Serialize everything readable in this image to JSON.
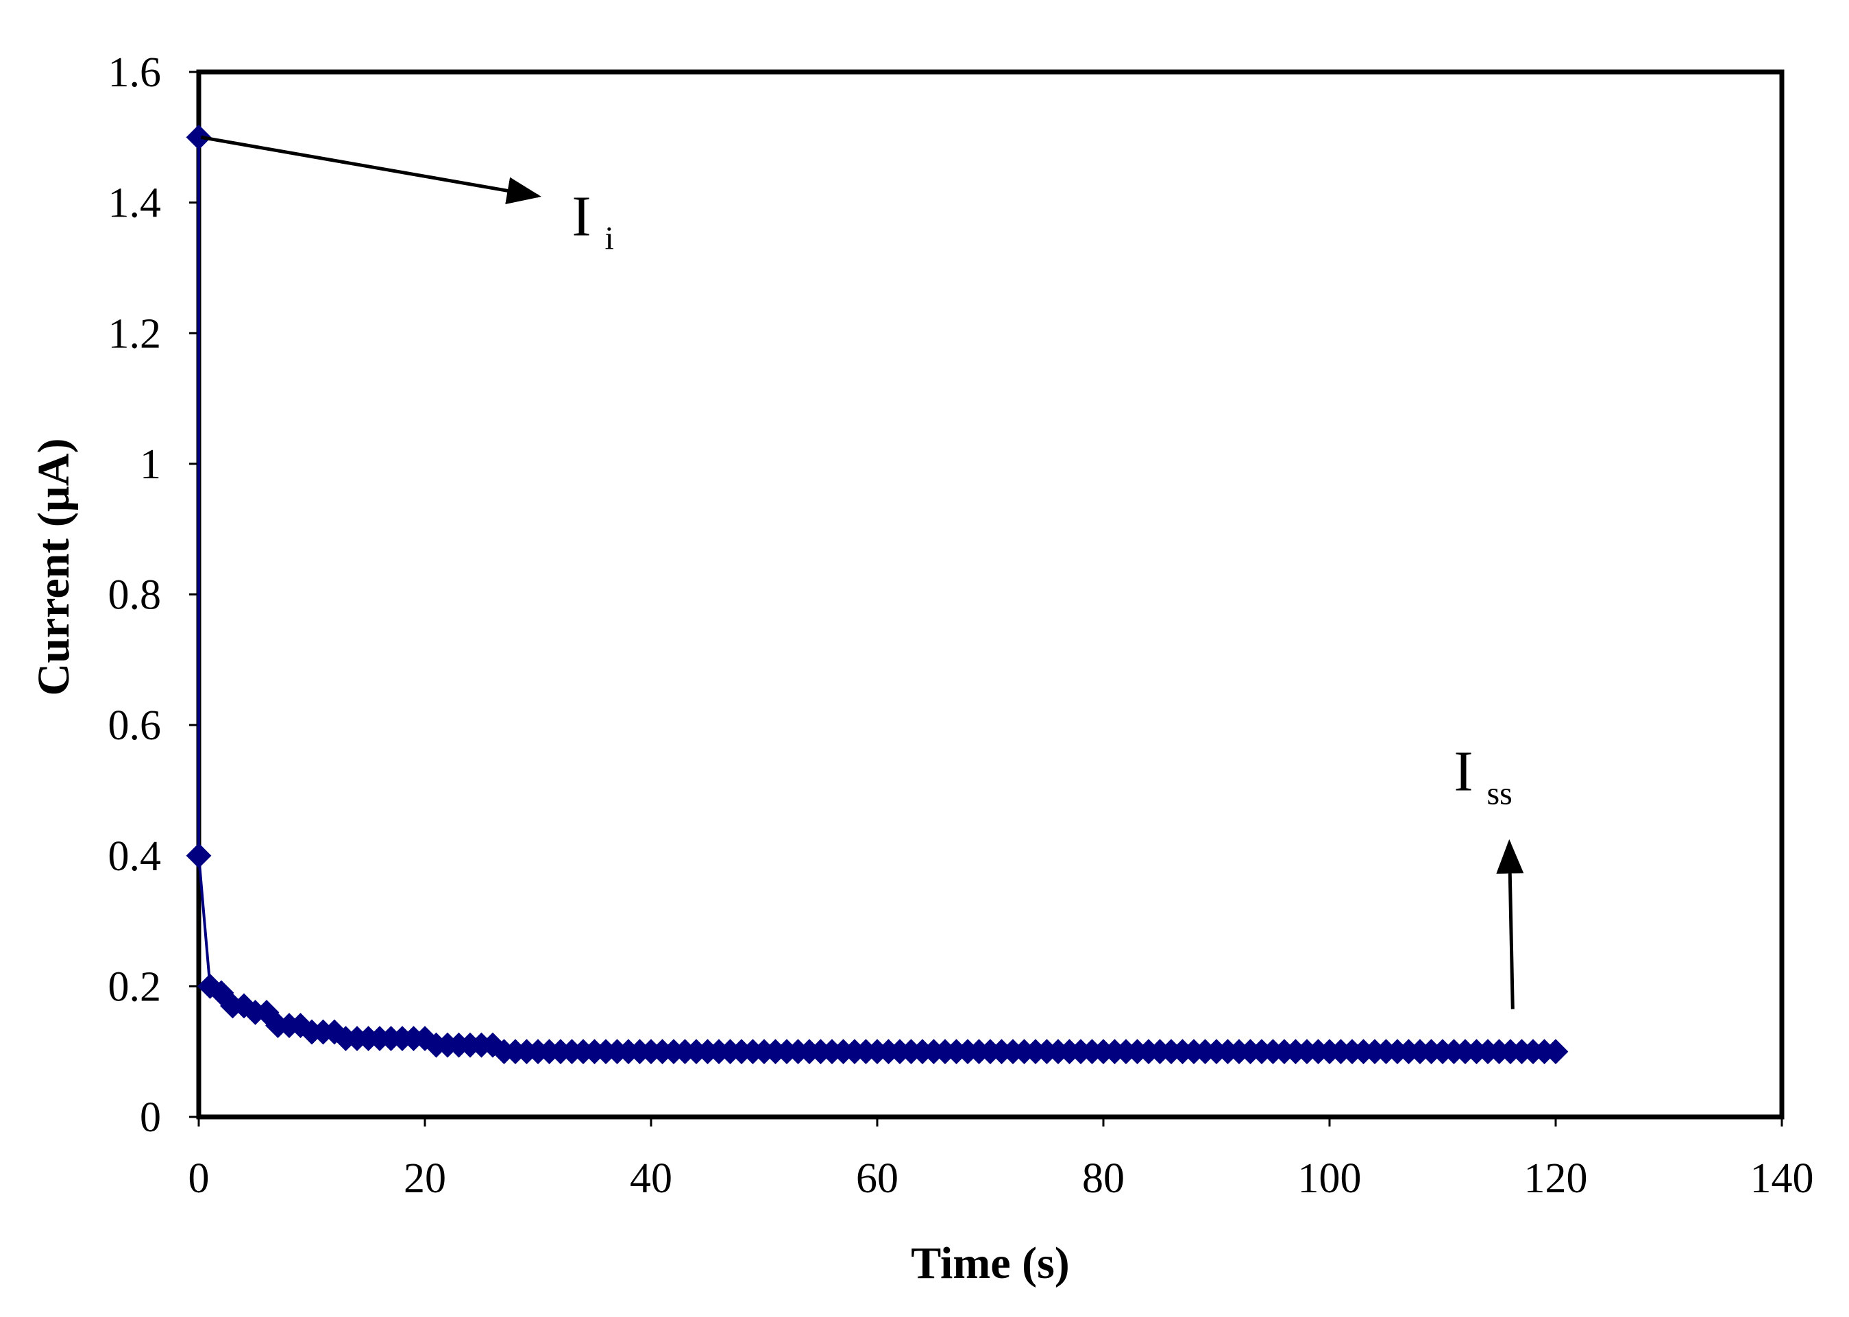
{
  "chart_data": {
    "type": "scatter",
    "title": "",
    "xlabel": "Time (s)",
    "ylabel": "Current (µA)",
    "xlim": [
      0,
      140
    ],
    "ylim": [
      0,
      1.6
    ],
    "x_ticks": [
      "0",
      "20",
      "40",
      "60",
      "80",
      "100",
      "120",
      "140"
    ],
    "y_ticks": [
      "0",
      "0.2",
      "0.4",
      "0.6",
      "0.8",
      "1",
      "1.2",
      "1.4",
      "1.6"
    ],
    "grid": false,
    "series": [
      {
        "name": "Current",
        "color": "#000080",
        "marker": "diamond",
        "points": [
          [
            0,
            1.5
          ],
          [
            0,
            0.4
          ],
          [
            1,
            0.2
          ],
          [
            2,
            0.19
          ],
          [
            3,
            0.17
          ],
          [
            4,
            0.17
          ],
          [
            5,
            0.16
          ],
          [
            6,
            0.16
          ],
          [
            7,
            0.14
          ],
          [
            8,
            0.14
          ],
          [
            9,
            0.14
          ],
          [
            10,
            0.13
          ],
          [
            11,
            0.13
          ],
          [
            12,
            0.13
          ],
          [
            13,
            0.12
          ],
          [
            14,
            0.12
          ],
          [
            15,
            0.12
          ],
          [
            16,
            0.12
          ],
          [
            17,
            0.12
          ],
          [
            18,
            0.12
          ],
          [
            19,
            0.12
          ],
          [
            20,
            0.12
          ],
          [
            21,
            0.11
          ],
          [
            22,
            0.11
          ],
          [
            23,
            0.11
          ],
          [
            24,
            0.11
          ],
          [
            25,
            0.11
          ],
          [
            26,
            0.11
          ],
          [
            27,
            0.1
          ],
          [
            28,
            0.1
          ],
          [
            29,
            0.1
          ],
          [
            30,
            0.1
          ],
          [
            31,
            0.1
          ],
          [
            32,
            0.1
          ],
          [
            33,
            0.1
          ],
          [
            34,
            0.1
          ],
          [
            35,
            0.1
          ],
          [
            36,
            0.1
          ],
          [
            37,
            0.1
          ],
          [
            38,
            0.1
          ],
          [
            39,
            0.1
          ],
          [
            40,
            0.1
          ],
          [
            41,
            0.1
          ],
          [
            42,
            0.1
          ],
          [
            43,
            0.1
          ],
          [
            44,
            0.1
          ],
          [
            45,
            0.1
          ],
          [
            46,
            0.1
          ],
          [
            47,
            0.1
          ],
          [
            48,
            0.1
          ],
          [
            49,
            0.1
          ],
          [
            50,
            0.1
          ],
          [
            51,
            0.1
          ],
          [
            52,
            0.1
          ],
          [
            53,
            0.1
          ],
          [
            54,
            0.1
          ],
          [
            55,
            0.1
          ],
          [
            56,
            0.1
          ],
          [
            57,
            0.1
          ],
          [
            58,
            0.1
          ],
          [
            59,
            0.1
          ],
          [
            60,
            0.1
          ],
          [
            61,
            0.1
          ],
          [
            62,
            0.1
          ],
          [
            63,
            0.1
          ],
          [
            64,
            0.1
          ],
          [
            65,
            0.1
          ],
          [
            66,
            0.1
          ],
          [
            67,
            0.1
          ],
          [
            68,
            0.1
          ],
          [
            69,
            0.1
          ],
          [
            70,
            0.1
          ],
          [
            71,
            0.1
          ],
          [
            72,
            0.1
          ],
          [
            73,
            0.1
          ],
          [
            74,
            0.1
          ],
          [
            75,
            0.1
          ],
          [
            76,
            0.1
          ],
          [
            77,
            0.1
          ],
          [
            78,
            0.1
          ],
          [
            79,
            0.1
          ],
          [
            80,
            0.1
          ],
          [
            81,
            0.1
          ],
          [
            82,
            0.1
          ],
          [
            83,
            0.1
          ],
          [
            84,
            0.1
          ],
          [
            85,
            0.1
          ],
          [
            86,
            0.1
          ],
          [
            87,
            0.1
          ],
          [
            88,
            0.1
          ],
          [
            89,
            0.1
          ],
          [
            90,
            0.1
          ],
          [
            91,
            0.1
          ],
          [
            92,
            0.1
          ],
          [
            93,
            0.1
          ],
          [
            94,
            0.1
          ],
          [
            95,
            0.1
          ],
          [
            96,
            0.1
          ],
          [
            97,
            0.1
          ],
          [
            98,
            0.1
          ],
          [
            99,
            0.1
          ],
          [
            100,
            0.1
          ],
          [
            101,
            0.1
          ],
          [
            102,
            0.1
          ],
          [
            103,
            0.1
          ],
          [
            104,
            0.1
          ],
          [
            105,
            0.1
          ],
          [
            106,
            0.1
          ],
          [
            107,
            0.1
          ],
          [
            108,
            0.1
          ],
          [
            109,
            0.1
          ],
          [
            110,
            0.1
          ],
          [
            111,
            0.1
          ],
          [
            112,
            0.1
          ],
          [
            113,
            0.1
          ],
          [
            114,
            0.1
          ],
          [
            115,
            0.1
          ],
          [
            116,
            0.1
          ],
          [
            117,
            0.1
          ],
          [
            118,
            0.1
          ],
          [
            119,
            0.1
          ],
          [
            120,
            0.1
          ]
        ]
      }
    ],
    "annotations": [
      {
        "name": "initial-current",
        "main": "I",
        "sub": "i",
        "arrow_from": [
          0.2,
          1.5
        ],
        "arrow_to": [
          30,
          1.41
        ],
        "text_at": [
          33,
          1.35
        ]
      },
      {
        "name": "steady-state-current",
        "main": "I",
        "sub": "ss",
        "arrow_from": [
          116.2,
          0.165
        ],
        "arrow_to": [
          115.9,
          0.42
        ],
        "text_at": [
          111,
          0.5
        ]
      }
    ]
  }
}
